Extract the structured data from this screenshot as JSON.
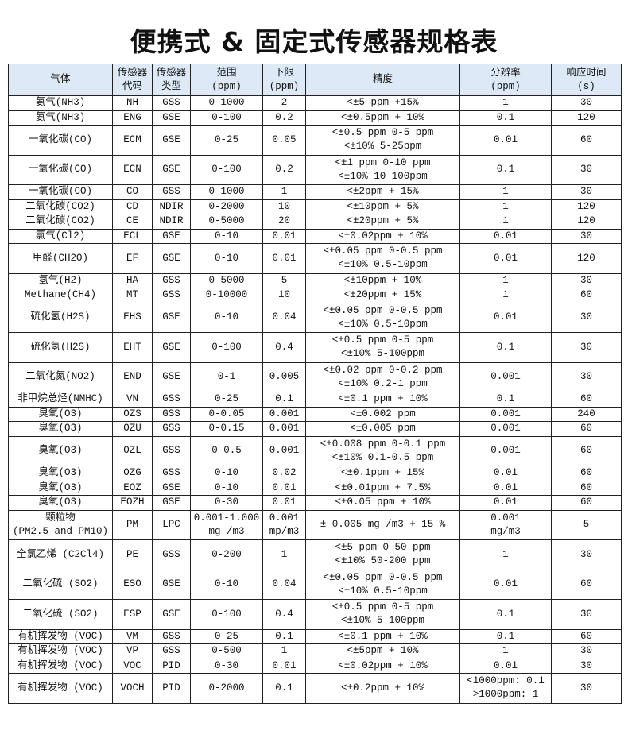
{
  "title": "便携式 & 固定式传感器规格表",
  "header_color": "#dde9f6",
  "columns": [
    [
      "气体"
    ],
    [
      "传感器",
      "代码"
    ],
    [
      "传感器",
      "类型"
    ],
    [
      "范围",
      "(ppm)"
    ],
    [
      "下限",
      "(ppm)"
    ],
    [
      "精度"
    ],
    [
      "分辨率",
      "(ppm)"
    ],
    [
      "响应时间",
      "(s)"
    ]
  ],
  "rows": [
    [
      [
        "氨气(NH3)"
      ],
      [
        "NH"
      ],
      [
        "GSS"
      ],
      [
        "0-1000"
      ],
      [
        "2"
      ],
      [
        "<±5 ppm +15%"
      ],
      [
        "1"
      ],
      [
        "30"
      ]
    ],
    [
      [
        "氨气(NH3)"
      ],
      [
        "ENG"
      ],
      [
        "GSE"
      ],
      [
        "0-100"
      ],
      [
        "0.2"
      ],
      [
        "<±0.5ppm + 10%"
      ],
      [
        "0.1"
      ],
      [
        "120"
      ]
    ],
    [
      [
        "一氧化碳(CO)"
      ],
      [
        "ECM"
      ],
      [
        "GSE"
      ],
      [
        "0-25"
      ],
      [
        "0.05"
      ],
      [
        "<±0.5 ppm 0-5 ppm",
        "<±10% 5-25ppm"
      ],
      [
        "0.01"
      ],
      [
        "60"
      ]
    ],
    [
      [
        "一氧化碳(CO)"
      ],
      [
        "ECN"
      ],
      [
        "GSE"
      ],
      [
        "0-100"
      ],
      [
        "0.2"
      ],
      [
        "<±1 ppm 0-10 ppm",
        "<±10% 10-100ppm"
      ],
      [
        "0.1"
      ],
      [
        "30"
      ]
    ],
    [
      [
        "一氧化碳(CO)"
      ],
      [
        "CO"
      ],
      [
        "GSS"
      ],
      [
        "0-1000"
      ],
      [
        "1"
      ],
      [
        "<±2ppm + 15%"
      ],
      [
        "1"
      ],
      [
        "30"
      ]
    ],
    [
      [
        "二氧化碳(CO2)"
      ],
      [
        "CD"
      ],
      [
        "NDIR"
      ],
      [
        "0-2000"
      ],
      [
        "10"
      ],
      [
        "<±10ppm + 5%"
      ],
      [
        "1"
      ],
      [
        "120"
      ]
    ],
    [
      [
        "二氧化碳(CO2)"
      ],
      [
        "CE"
      ],
      [
        "NDIR"
      ],
      [
        "0-5000"
      ],
      [
        "20"
      ],
      [
        "<±20ppm + 5%"
      ],
      [
        "1"
      ],
      [
        "120"
      ]
    ],
    [
      [
        "氯气(Cl2)"
      ],
      [
        "ECL"
      ],
      [
        "GSE"
      ],
      [
        "0-10"
      ],
      [
        "0.01"
      ],
      [
        "<±0.02ppm + 10%"
      ],
      [
        "0.01"
      ],
      [
        "30"
      ]
    ],
    [
      [
        "甲醛(CH2O)"
      ],
      [
        "EF"
      ],
      [
        "GSE"
      ],
      [
        "0-10"
      ],
      [
        "0.01"
      ],
      [
        "<±0.05 ppm 0-0.5 ppm",
        "<±10% 0.5-10ppm"
      ],
      [
        "0.01"
      ],
      [
        "120"
      ]
    ],
    [
      [
        "氢气(H2)"
      ],
      [
        "HA"
      ],
      [
        "GSS"
      ],
      [
        "0-5000"
      ],
      [
        "5"
      ],
      [
        "<±10ppm + 10%"
      ],
      [
        "1"
      ],
      [
        "30"
      ]
    ],
    [
      [
        "Methane(CH4)"
      ],
      [
        "MT"
      ],
      [
        "GSS"
      ],
      [
        "0-10000"
      ],
      [
        "10"
      ],
      [
        "<±20ppm + 15%"
      ],
      [
        "1"
      ],
      [
        "60"
      ]
    ],
    [
      [
        "硫化氢(H2S)"
      ],
      [
        "EHS"
      ],
      [
        "GSE"
      ],
      [
        "0-10"
      ],
      [
        "0.04"
      ],
      [
        "<±0.05 ppm 0-0.5 ppm",
        "<±10% 0.5-10ppm"
      ],
      [
        "0.01"
      ],
      [
        "30"
      ]
    ],
    [
      [
        "硫化氢(H2S)"
      ],
      [
        "EHT"
      ],
      [
        "GSE"
      ],
      [
        "0-100"
      ],
      [
        "0.4"
      ],
      [
        "<±0.5 ppm 0-5 ppm",
        "<±10% 5-100ppm"
      ],
      [
        "0.1"
      ],
      [
        "30"
      ]
    ],
    [
      [
        "二氧化氮(NO2)"
      ],
      [
        "END"
      ],
      [
        "GSE"
      ],
      [
        "0-1"
      ],
      [
        "0.005"
      ],
      [
        "<±0.02 ppm 0-0.2 ppm",
        "<±10% 0.2-1 ppm"
      ],
      [
        "0.001"
      ],
      [
        "30"
      ]
    ],
    [
      [
        "非甲烷总烃(NMHC)"
      ],
      [
        "VN"
      ],
      [
        "GSS"
      ],
      [
        "0-25"
      ],
      [
        "0.1"
      ],
      [
        "<±0.1 ppm + 10%"
      ],
      [
        "0.1"
      ],
      [
        "60"
      ]
    ],
    [
      [
        "臭氧(O3)"
      ],
      [
        "OZS"
      ],
      [
        "GSS"
      ],
      [
        "0-0.05"
      ],
      [
        "0.001"
      ],
      [
        "<±0.002 ppm"
      ],
      [
        "0.001"
      ],
      [
        "240"
      ]
    ],
    [
      [
        "臭氧(O3)"
      ],
      [
        "OZU"
      ],
      [
        "GSS"
      ],
      [
        "0-0.15"
      ],
      [
        "0.001"
      ],
      [
        "<±0.005 ppm"
      ],
      [
        "0.001"
      ],
      [
        "60"
      ]
    ],
    [
      [
        "臭氧(O3)"
      ],
      [
        "OZL"
      ],
      [
        "GSS"
      ],
      [
        "0-0.5"
      ],
      [
        "0.001"
      ],
      [
        "<±0.008 ppm 0-0.1 ppm",
        "<±10% 0.1-0.5 ppm"
      ],
      [
        "0.001"
      ],
      [
        "60"
      ]
    ],
    [
      [
        "臭氧(O3)"
      ],
      [
        "OZG"
      ],
      [
        "GSS"
      ],
      [
        "0-10"
      ],
      [
        "0.02"
      ],
      [
        "<±0.1ppm + 15%"
      ],
      [
        "0.01"
      ],
      [
        "60"
      ]
    ],
    [
      [
        "臭氧(O3)"
      ],
      [
        "EOZ"
      ],
      [
        "GSE"
      ],
      [
        "0-10"
      ],
      [
        "0.01"
      ],
      [
        "<±0.01ppm + 7.5%"
      ],
      [
        "0.01"
      ],
      [
        "60"
      ]
    ],
    [
      [
        "臭氧(O3)"
      ],
      [
        "EOZH"
      ],
      [
        "GSE"
      ],
      [
        "0-30"
      ],
      [
        "0.01"
      ],
      [
        "<±0.05 ppm + 10%"
      ],
      [
        "0.01"
      ],
      [
        "60"
      ]
    ],
    [
      [
        "颗粒物",
        "(PM2.5 and PM10)"
      ],
      [
        "PM"
      ],
      [
        "LPC"
      ],
      [
        "0.001-1.000",
        "mg /m3"
      ],
      [
        "0.001",
        "mp/m3"
      ],
      [
        "± 0.005 mg /m3 + 15 %"
      ],
      [
        "0.001",
        "mg/m3"
      ],
      [
        "5"
      ]
    ],
    [
      [
        "全氯乙烯 (C2Cl4)"
      ],
      [
        "PE"
      ],
      [
        "GSS"
      ],
      [
        "0-200"
      ],
      [
        "1"
      ],
      [
        "<±5 ppm 0-50 ppm",
        "<±10% 50-200 ppm"
      ],
      [
        "1"
      ],
      [
        "30"
      ]
    ],
    [
      [
        "二氧化硫 (SO2)"
      ],
      [
        "ESO"
      ],
      [
        "GSE"
      ],
      [
        "0-10"
      ],
      [
        "0.04"
      ],
      [
        "<±0.05 ppm 0-0.5 ppm",
        "<±10% 0.5-10ppm"
      ],
      [
        "0.01"
      ],
      [
        "60"
      ]
    ],
    [
      [
        "二氧化硫 (SO2)"
      ],
      [
        "ESP"
      ],
      [
        "GSE"
      ],
      [
        "0-100"
      ],
      [
        "0.4"
      ],
      [
        "<±0.5 ppm 0-5 ppm",
        "<±10% 5-100ppm"
      ],
      [
        "0.1"
      ],
      [
        "30"
      ]
    ],
    [
      [
        "有机挥发物 (VOC)"
      ],
      [
        "VM"
      ],
      [
        "GSS"
      ],
      [
        "0-25"
      ],
      [
        "0.1"
      ],
      [
        "<±0.1 ppm + 10%"
      ],
      [
        "0.1"
      ],
      [
        "60"
      ]
    ],
    [
      [
        "有机挥发物 (VOC)"
      ],
      [
        "VP"
      ],
      [
        "GSS"
      ],
      [
        "0-500"
      ],
      [
        "1"
      ],
      [
        "<±5ppm + 10%"
      ],
      [
        "1"
      ],
      [
        "30"
      ]
    ],
    [
      [
        "有机挥发物 (VOC)"
      ],
      [
        "VOC"
      ],
      [
        "PID"
      ],
      [
        "0-30"
      ],
      [
        "0.01"
      ],
      [
        "<±0.02ppm + 10%"
      ],
      [
        "0.01"
      ],
      [
        "30"
      ]
    ],
    [
      [
        "有机挥发物 (VOC)"
      ],
      [
        "VOCH"
      ],
      [
        "PID"
      ],
      [
        "0-2000"
      ],
      [
        "0.1"
      ],
      [
        "<±0.2ppm + 10%"
      ],
      [
        "<1000ppm: 0.1",
        ">1000ppm: 1"
      ],
      [
        "30"
      ]
    ]
  ]
}
